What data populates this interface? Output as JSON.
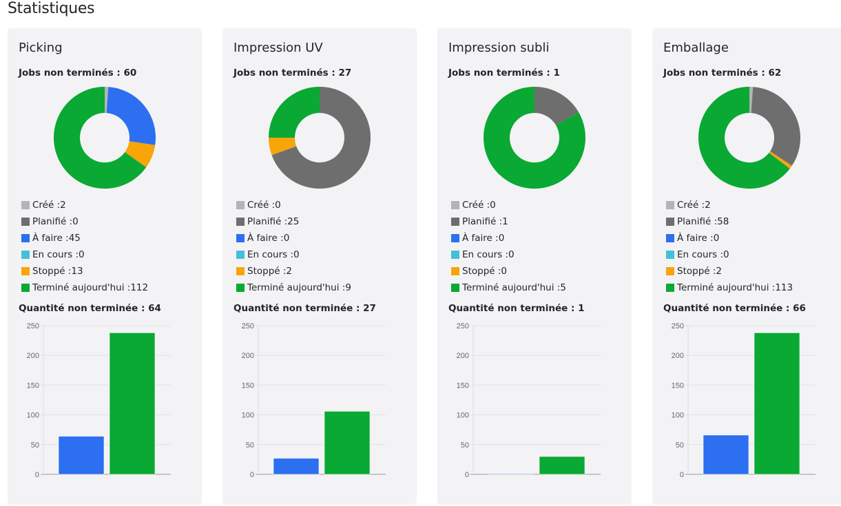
{
  "page_title": "Statistiques",
  "labels": {
    "jobs": "Jobs non terminés : ",
    "quantity": "Quantité non terminée : "
  },
  "statuses": [
    {
      "name": "Créé",
      "color": "#b4b4b4"
    },
    {
      "name": "Planifié",
      "color": "#6e6e6e"
    },
    {
      "name": "À faire",
      "color": "#2c6ff0"
    },
    {
      "name": "En cours",
      "color": "#45c0d8"
    },
    {
      "name": "Stoppé",
      "color": "#f7a508"
    },
    {
      "name": "Terminé aujourd'hui",
      "color": "#09a933"
    }
  ],
  "bar_colors": [
    "#2c6ff0",
    "#09a933"
  ],
  "chart_data": [
    {
      "type": "pie",
      "title": "Picking",
      "jobs_open": "60",
      "quantity_open": "64",
      "counts": [
        2,
        0,
        45,
        0,
        13,
        112
      ],
      "bars": [
        64,
        238
      ],
      "ylim": [
        0,
        250
      ],
      "yticks": [
        0,
        50,
        100,
        150,
        200,
        250
      ]
    },
    {
      "type": "pie",
      "title": "Impression UV",
      "jobs_open": "27",
      "quantity_open": "27",
      "counts": [
        0,
        25,
        0,
        0,
        2,
        9
      ],
      "bars": [
        27,
        106
      ],
      "ylim": [
        0,
        250
      ],
      "yticks": [
        0,
        50,
        100,
        150,
        200,
        250
      ]
    },
    {
      "type": "pie",
      "title": "Impression subli",
      "jobs_open": "1",
      "quantity_open": "1",
      "counts": [
        0,
        1,
        0,
        0,
        0,
        5
      ],
      "bars": [
        1,
        30
      ],
      "ylim": [
        0,
        250
      ],
      "yticks": [
        0,
        50,
        100,
        150,
        200,
        250
      ]
    },
    {
      "type": "pie",
      "title": "Emballage",
      "jobs_open": "62",
      "quantity_open": "66",
      "counts": [
        2,
        58,
        0,
        0,
        2,
        113
      ],
      "bars": [
        66,
        238
      ],
      "ylim": [
        0,
        250
      ],
      "yticks": [
        0,
        50,
        100,
        150,
        200,
        250
      ]
    }
  ]
}
